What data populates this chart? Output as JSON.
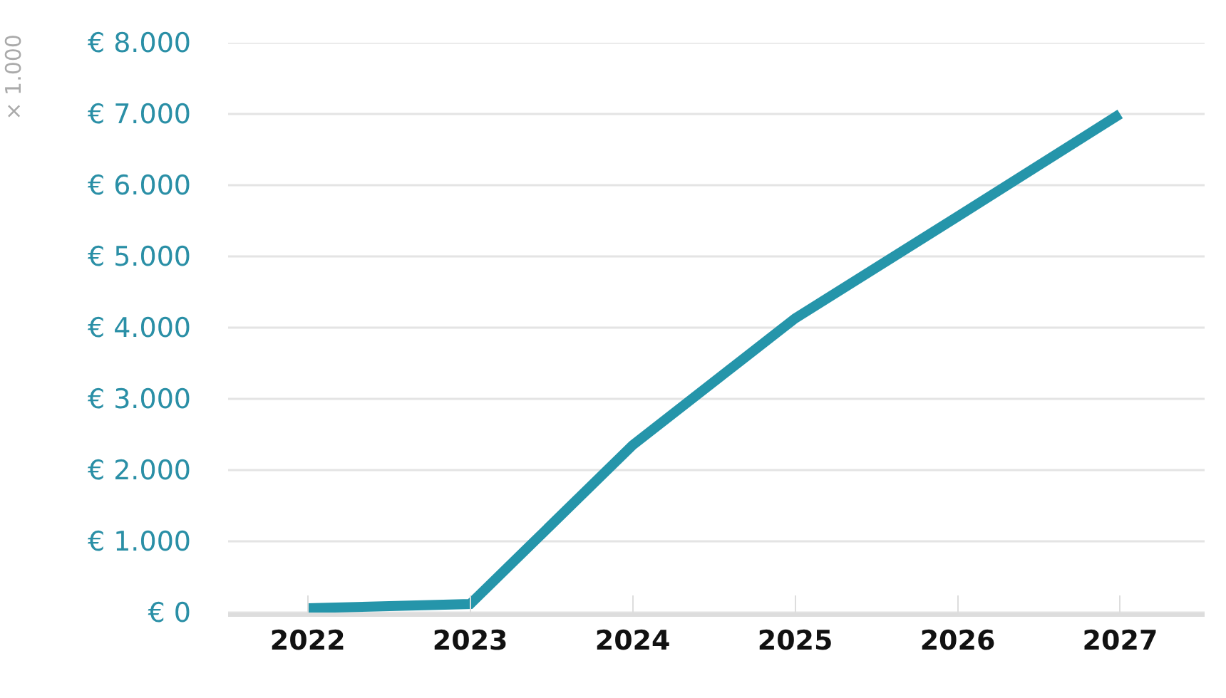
{
  "chart_data": {
    "type": "line",
    "ylabel": "× 1.000",
    "categories": [
      "2022",
      "2023",
      "2024",
      "2025",
      "2026",
      "2027"
    ],
    "series": [
      {
        "color": "#2595aa",
        "values": [
          60,
          120,
          2350,
          4130,
          5560,
          7000
        ]
      }
    ],
    "ylim": [
      0,
      8000
    ],
    "yticks": [
      {
        "value": 0,
        "label": "€ 0"
      },
      {
        "value": 1000,
        "label": "€ 1.000"
      },
      {
        "value": 2000,
        "label": "€ 2.000"
      },
      {
        "value": 3000,
        "label": "€ 3.000"
      },
      {
        "value": 4000,
        "label": "€ 4.000"
      },
      {
        "value": 5000,
        "label": "€ 5.000"
      },
      {
        "value": 6000,
        "label": "€ 6.000"
      },
      {
        "value": 7000,
        "label": "€ 7.000"
      },
      {
        "value": 8000,
        "label": "€ 8.000"
      }
    ],
    "grid": "y",
    "marker": "none",
    "line_style": "solid"
  }
}
